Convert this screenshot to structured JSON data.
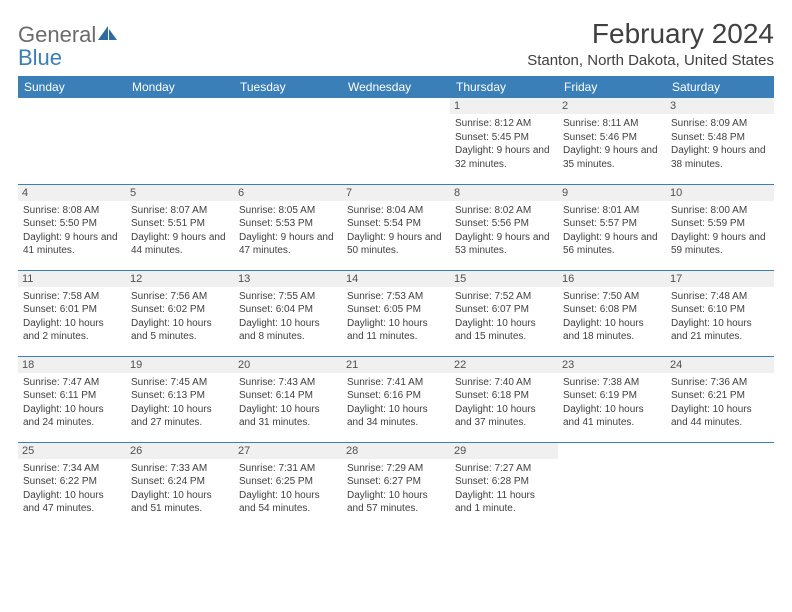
{
  "logo": {
    "line1": "General",
    "line2": "Blue",
    "text_color": "#6b6b6b",
    "accent_color": "#3b7fb8"
  },
  "header": {
    "month_title": "February 2024",
    "location": "Stanton, North Dakota, United States"
  },
  "colors": {
    "header_bg": "#3b7fb8",
    "header_text": "#ffffff",
    "cell_border": "#3b7fb8",
    "daynum_bg": "#f0f0f0",
    "text": "#404040",
    "background": "#ffffff"
  },
  "day_headers": [
    "Sunday",
    "Monday",
    "Tuesday",
    "Wednesday",
    "Thursday",
    "Friday",
    "Saturday"
  ],
  "weeks": [
    [
      null,
      null,
      null,
      null,
      {
        "num": "1",
        "sunrise": "8:12 AM",
        "sunset": "5:45 PM",
        "daylight": "9 hours and 32 minutes."
      },
      {
        "num": "2",
        "sunrise": "8:11 AM",
        "sunset": "5:46 PM",
        "daylight": "9 hours and 35 minutes."
      },
      {
        "num": "3",
        "sunrise": "8:09 AM",
        "sunset": "5:48 PM",
        "daylight": "9 hours and 38 minutes."
      }
    ],
    [
      {
        "num": "4",
        "sunrise": "8:08 AM",
        "sunset": "5:50 PM",
        "daylight": "9 hours and 41 minutes."
      },
      {
        "num": "5",
        "sunrise": "8:07 AM",
        "sunset": "5:51 PM",
        "daylight": "9 hours and 44 minutes."
      },
      {
        "num": "6",
        "sunrise": "8:05 AM",
        "sunset": "5:53 PM",
        "daylight": "9 hours and 47 minutes."
      },
      {
        "num": "7",
        "sunrise": "8:04 AM",
        "sunset": "5:54 PM",
        "daylight": "9 hours and 50 minutes."
      },
      {
        "num": "8",
        "sunrise": "8:02 AM",
        "sunset": "5:56 PM",
        "daylight": "9 hours and 53 minutes."
      },
      {
        "num": "9",
        "sunrise": "8:01 AM",
        "sunset": "5:57 PM",
        "daylight": "9 hours and 56 minutes."
      },
      {
        "num": "10",
        "sunrise": "8:00 AM",
        "sunset": "5:59 PM",
        "daylight": "9 hours and 59 minutes."
      }
    ],
    [
      {
        "num": "11",
        "sunrise": "7:58 AM",
        "sunset": "6:01 PM",
        "daylight": "10 hours and 2 minutes."
      },
      {
        "num": "12",
        "sunrise": "7:56 AM",
        "sunset": "6:02 PM",
        "daylight": "10 hours and 5 minutes."
      },
      {
        "num": "13",
        "sunrise": "7:55 AM",
        "sunset": "6:04 PM",
        "daylight": "10 hours and 8 minutes."
      },
      {
        "num": "14",
        "sunrise": "7:53 AM",
        "sunset": "6:05 PM",
        "daylight": "10 hours and 11 minutes."
      },
      {
        "num": "15",
        "sunrise": "7:52 AM",
        "sunset": "6:07 PM",
        "daylight": "10 hours and 15 minutes."
      },
      {
        "num": "16",
        "sunrise": "7:50 AM",
        "sunset": "6:08 PM",
        "daylight": "10 hours and 18 minutes."
      },
      {
        "num": "17",
        "sunrise": "7:48 AM",
        "sunset": "6:10 PM",
        "daylight": "10 hours and 21 minutes."
      }
    ],
    [
      {
        "num": "18",
        "sunrise": "7:47 AM",
        "sunset": "6:11 PM",
        "daylight": "10 hours and 24 minutes."
      },
      {
        "num": "19",
        "sunrise": "7:45 AM",
        "sunset": "6:13 PM",
        "daylight": "10 hours and 27 minutes."
      },
      {
        "num": "20",
        "sunrise": "7:43 AM",
        "sunset": "6:14 PM",
        "daylight": "10 hours and 31 minutes."
      },
      {
        "num": "21",
        "sunrise": "7:41 AM",
        "sunset": "6:16 PM",
        "daylight": "10 hours and 34 minutes."
      },
      {
        "num": "22",
        "sunrise": "7:40 AM",
        "sunset": "6:18 PM",
        "daylight": "10 hours and 37 minutes."
      },
      {
        "num": "23",
        "sunrise": "7:38 AM",
        "sunset": "6:19 PM",
        "daylight": "10 hours and 41 minutes."
      },
      {
        "num": "24",
        "sunrise": "7:36 AM",
        "sunset": "6:21 PM",
        "daylight": "10 hours and 44 minutes."
      }
    ],
    [
      {
        "num": "25",
        "sunrise": "7:34 AM",
        "sunset": "6:22 PM",
        "daylight": "10 hours and 47 minutes."
      },
      {
        "num": "26",
        "sunrise": "7:33 AM",
        "sunset": "6:24 PM",
        "daylight": "10 hours and 51 minutes."
      },
      {
        "num": "27",
        "sunrise": "7:31 AM",
        "sunset": "6:25 PM",
        "daylight": "10 hours and 54 minutes."
      },
      {
        "num": "28",
        "sunrise": "7:29 AM",
        "sunset": "6:27 PM",
        "daylight": "10 hours and 57 minutes."
      },
      {
        "num": "29",
        "sunrise": "7:27 AM",
        "sunset": "6:28 PM",
        "daylight": "11 hours and 1 minute."
      },
      null,
      null
    ]
  ],
  "labels": {
    "sunrise": "Sunrise:",
    "sunset": "Sunset:",
    "daylight": "Daylight:"
  }
}
